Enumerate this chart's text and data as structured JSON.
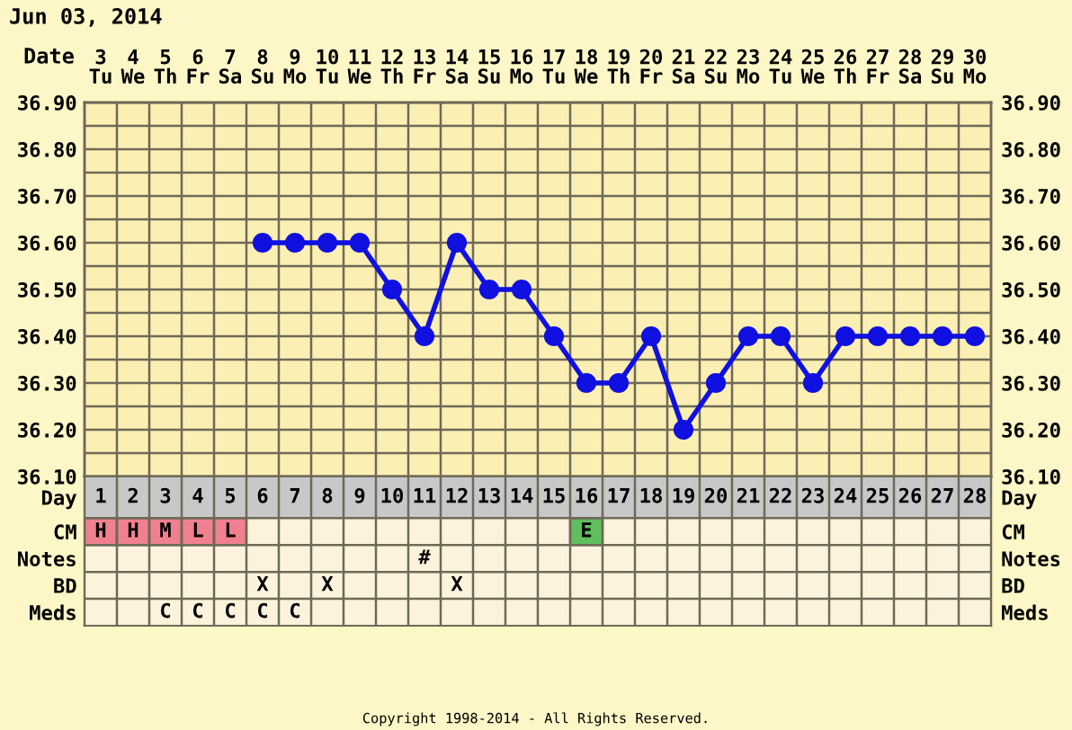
{
  "chart_data": [
    {
      "type": "line",
      "title": "Jun 03, 2014",
      "xlabel": "Date",
      "categories": [
        "3\nTu",
        "4\nWe",
        "5\nTh",
        "6\nFr",
        "7\nSa",
        "8\nSu",
        "9\nMo",
        "10\nTu",
        "11\nWe",
        "12\nTh",
        "13\nFr",
        "14\nSa",
        "15\nSu",
        "16\nMo",
        "17\nTu",
        "18\nWe",
        "19\nTh",
        "20\nFr",
        "21\nSa",
        "22\nSu",
        "23\nMo",
        "24\nTu",
        "25\nWe",
        "26\nTh",
        "27\nFr",
        "28\nSa",
        "29\nSu",
        "30\nMo"
      ],
      "values": [
        null,
        null,
        null,
        null,
        null,
        36.6,
        36.6,
        36.6,
        36.6,
        36.5,
        36.4,
        36.6,
        36.5,
        36.5,
        36.4,
        36.3,
        36.3,
        36.4,
        36.2,
        36.3,
        36.4,
        36.4,
        36.3,
        36.4,
        36.4,
        36.4,
        36.4,
        36.4
      ],
      "color": "#1010e0",
      "marker": "circle",
      "line_style": "solid",
      "grid": true,
      "ylim": [
        36.1,
        36.9
      ],
      "yticks": [
        {
          "value": 36.1,
          "label": "36.10"
        },
        {
          "value": 36.15,
          "label": null
        },
        {
          "value": 36.2,
          "label": "36.20"
        },
        {
          "value": 36.25,
          "label": null
        },
        {
          "value": 36.3,
          "label": "36.30"
        },
        {
          "value": 36.35,
          "label": null
        },
        {
          "value": 36.4,
          "label": "36.40"
        },
        {
          "value": 36.45,
          "label": null
        },
        {
          "value": 36.5,
          "label": "36.50"
        },
        {
          "value": 36.55,
          "label": null
        },
        {
          "value": 36.6,
          "label": "36.60"
        },
        {
          "value": 36.65,
          "label": null
        },
        {
          "value": 36.7,
          "label": "36.70"
        },
        {
          "value": 36.75,
          "label": null
        },
        {
          "value": 36.8,
          "label": "36.80"
        },
        {
          "value": 36.85,
          "label": null
        },
        {
          "value": 36.9,
          "label": "36.90"
        }
      ],
      "y2lim": [
        36.1,
        36.9
      ],
      "y2ticks": [
        {
          "value": 36.1,
          "label": "36.10"
        },
        {
          "value": 36.2,
          "label": "36.20"
        },
        {
          "value": 36.3,
          "label": "36.30"
        },
        {
          "value": 36.4,
          "label": "36.40"
        },
        {
          "value": 36.5,
          "label": "36.50"
        },
        {
          "value": 36.6,
          "label": "36.60"
        },
        {
          "value": 36.7,
          "label": "36.70"
        },
        {
          "value": 36.8,
          "label": "36.80"
        },
        {
          "value": 36.9,
          "label": "36.90"
        }
      ],
      "annotations": [
        "Copyright 1998-2014 - All Rights Reserved."
      ]
    },
    {
      "type": "heatmap",
      "grid": true,
      "categories": [
        "1",
        "2",
        "3",
        "4",
        "5",
        "6",
        "7",
        "8",
        "9",
        "10",
        "11",
        "12",
        "13",
        "14",
        "15",
        "16",
        "17",
        "18",
        "19",
        "20",
        "21",
        "22",
        "23",
        "24",
        "25",
        "26",
        "27",
        "28"
      ],
      "y_categories": [
        "Day",
        "CM",
        "Notes",
        "BD",
        "Meds"
      ],
      "y2_categories": [
        "Day",
        "CM",
        "Notes",
        "BD",
        "Meds"
      ],
      "cells": [
        [
          null,
          null,
          null,
          null,
          null,
          null,
          null,
          null,
          null,
          null,
          null,
          null,
          null,
          null,
          null,
          null,
          null,
          null,
          null,
          null,
          null,
          null,
          null,
          null,
          null,
          null,
          null,
          null
        ],
        [
          null,
          null,
          null,
          null,
          null,
          null,
          null,
          null,
          null,
          null,
          null,
          null,
          null,
          null,
          null,
          null,
          null,
          null,
          null,
          null,
          null,
          null,
          null,
          null,
          null,
          null,
          null,
          null
        ],
        [
          null,
          null,
          null,
          null,
          null,
          null,
          null,
          null,
          null,
          null,
          null,
          null,
          null,
          null,
          null,
          null,
          null,
          null,
          null,
          null,
          null,
          null,
          null,
          null,
          null,
          null,
          null,
          null
        ],
        [
          null,
          null,
          null,
          null,
          null,
          null,
          null,
          null,
          null,
          null,
          null,
          null,
          null,
          null,
          null,
          null,
          null,
          null,
          null,
          null,
          null,
          null,
          null,
          null,
          null,
          null,
          null,
          null
        ],
        [
          null,
          null,
          null,
          null,
          null,
          null,
          null,
          null,
          null,
          null,
          null,
          null,
          null,
          null,
          null,
          null,
          null,
          null,
          null,
          null,
          null,
          null,
          null,
          null,
          null,
          null,
          null,
          null
        ]
      ],
      "cell_labels": [
        [
          null,
          null,
          null,
          null,
          null,
          null,
          null,
          null,
          null,
          null,
          null,
          null,
          null,
          null,
          null,
          null,
          null,
          null,
          null,
          null,
          null,
          null,
          null,
          null,
          null,
          null,
          null,
          null
        ],
        [
          "H",
          "H",
          "M",
          "L",
          "L",
          null,
          null,
          null,
          null,
          null,
          null,
          null,
          null,
          null,
          null,
          "E",
          null,
          null,
          null,
          null,
          null,
          null,
          null,
          null,
          null,
          null,
          null,
          null
        ],
        [
          null,
          null,
          null,
          null,
          null,
          null,
          null,
          null,
          null,
          null,
          "#",
          null,
          null,
          null,
          null,
          null,
          null,
          null,
          null,
          null,
          null,
          null,
          null,
          null,
          null,
          null,
          null,
          null
        ],
        [
          null,
          null,
          null,
          null,
          null,
          "X",
          null,
          "X",
          null,
          null,
          null,
          "X",
          null,
          null,
          null,
          null,
          null,
          null,
          null,
          null,
          null,
          null,
          null,
          null,
          null,
          null,
          null,
          null
        ],
        [
          null,
          null,
          "C",
          "C",
          "C",
          "C",
          "C",
          null,
          null,
          null,
          null,
          null,
          null,
          null,
          null,
          null,
          null,
          null,
          null,
          null,
          null,
          null,
          null,
          null,
          null,
          null,
          null,
          null
        ]
      ],
      "colors": [
        [
          null,
          null,
          null,
          null,
          null,
          null,
          null,
          null,
          null,
          null,
          null,
          null,
          null,
          null,
          null,
          null,
          null,
          null,
          null,
          null,
          null,
          null,
          null,
          null,
          null,
          null,
          null,
          null
        ],
        [
          "#f08090",
          "#f08090",
          "#f08090",
          "#f08090",
          "#f08090",
          null,
          null,
          null,
          null,
          null,
          null,
          null,
          null,
          null,
          null,
          "#5fbf5f",
          null,
          null,
          null,
          null,
          null,
          null,
          null,
          null,
          null,
          null,
          null,
          null
        ],
        [
          null,
          null,
          null,
          null,
          null,
          null,
          null,
          null,
          null,
          null,
          null,
          null,
          null,
          null,
          null,
          null,
          null,
          null,
          null,
          null,
          null,
          null,
          null,
          null,
          null,
          null,
          null,
          null
        ],
        [
          null,
          null,
          null,
          null,
          null,
          null,
          null,
          null,
          null,
          null,
          null,
          null,
          null,
          null,
          null,
          null,
          null,
          null,
          null,
          null,
          null,
          null,
          null,
          null,
          null,
          null,
          null,
          null
        ],
        [
          null,
          null,
          null,
          null,
          null,
          null,
          null,
          null,
          null,
          null,
          null,
          null,
          null,
          null,
          null,
          null,
          null,
          null,
          null,
          null,
          null,
          null,
          null,
          null,
          null,
          null,
          null,
          null
        ]
      ]
    }
  ]
}
